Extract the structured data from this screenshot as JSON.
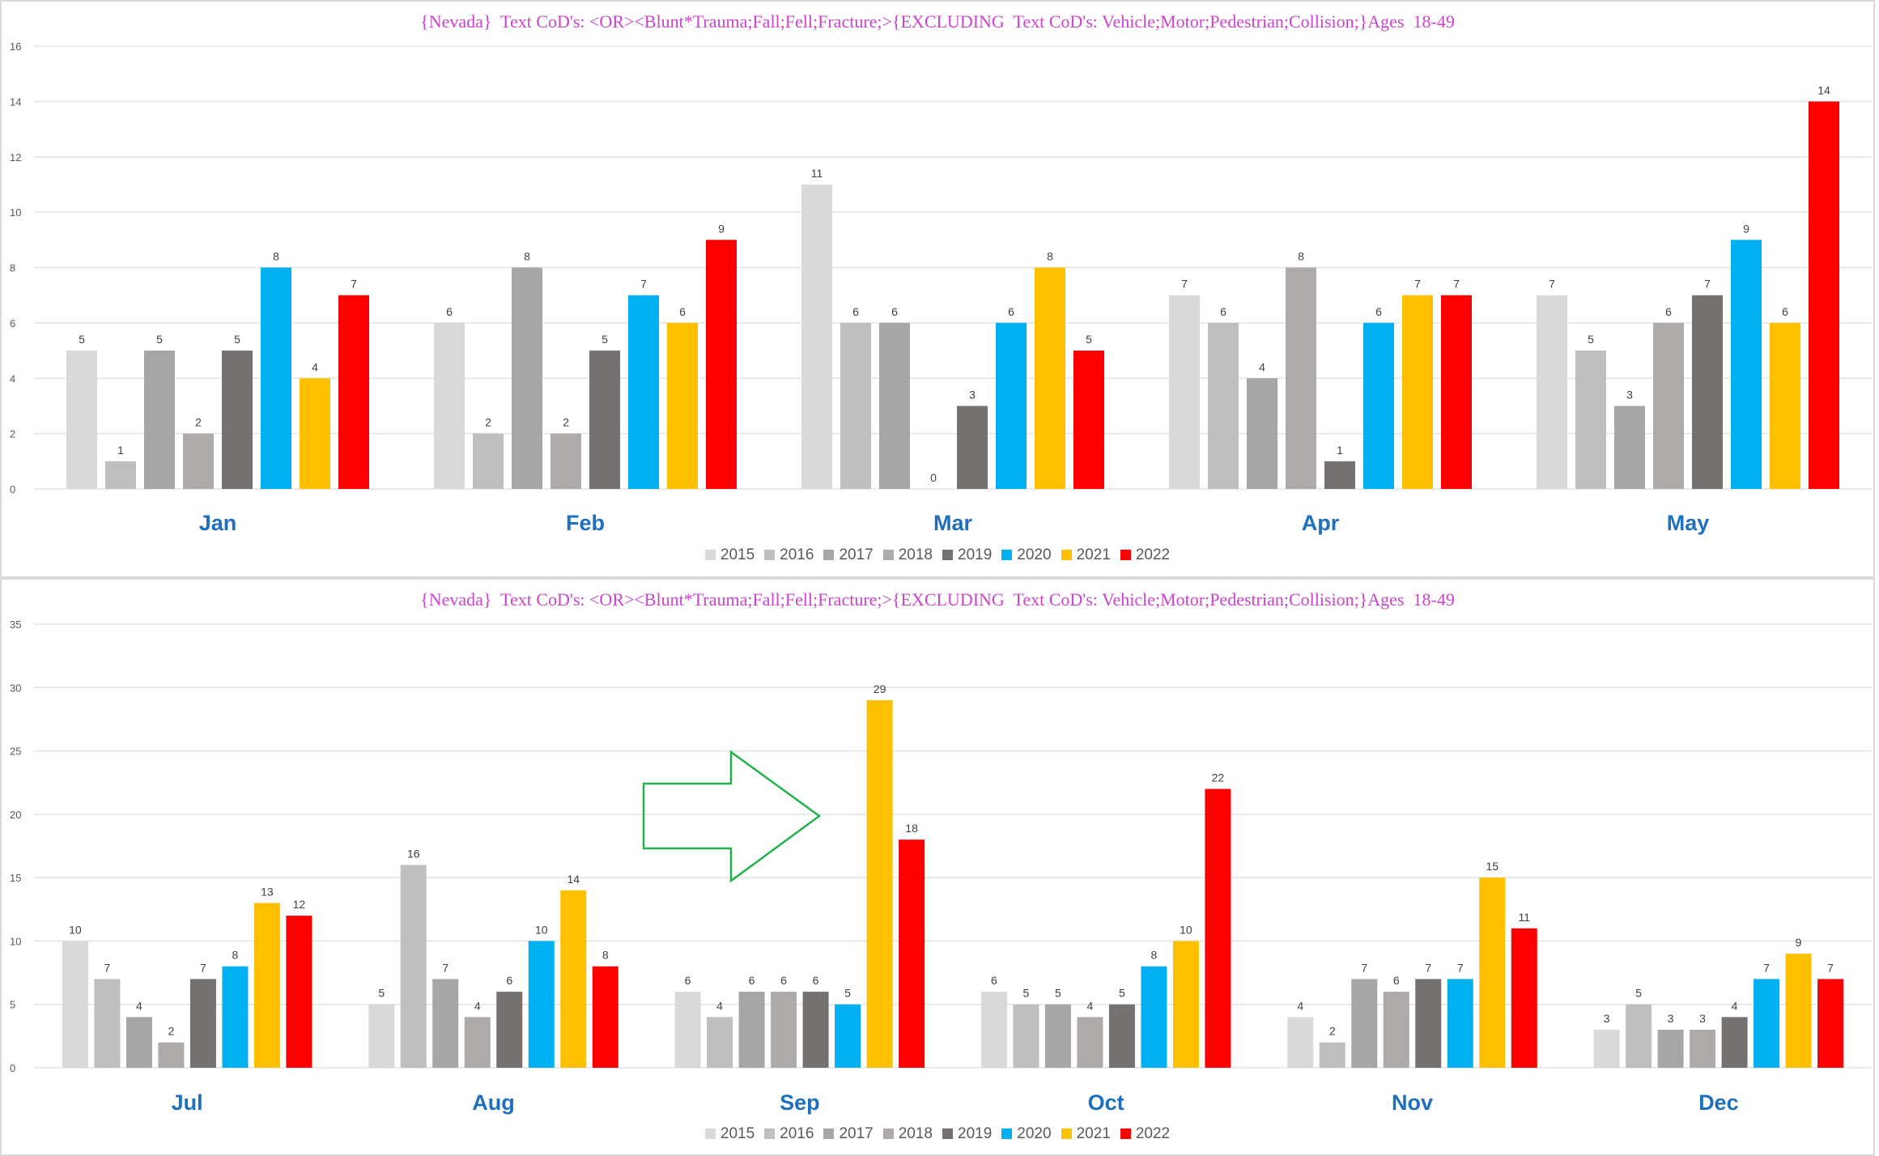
{
  "chart_data": [
    {
      "type": "bar",
      "title": "{Nevada}  Text CoD's: <OR><Blunt*Trauma;Fall;Fell;Fracture;>{EXCLUDING  Text CoD's: Vehicle;Motor;Pedestrian;Collision;}Ages  18-49",
      "categories": [
        "Jan",
        "Feb",
        "Mar",
        "Apr",
        "May"
      ],
      "ylim": [
        0,
        16
      ],
      "yticks": [
        0,
        2,
        4,
        6,
        8,
        10,
        12,
        14,
        16
      ],
      "grid": true,
      "legend_position": "bottom",
      "series": [
        {
          "name": "2015",
          "color": "#d9d9d9",
          "values": [
            5,
            6,
            11,
            7,
            7
          ]
        },
        {
          "name": "2016",
          "color": "#bfbfbf",
          "values": [
            1,
            2,
            6,
            6,
            5
          ]
        },
        {
          "name": "2017",
          "color": "#a6a6a6",
          "values": [
            5,
            8,
            6,
            4,
            3
          ]
        },
        {
          "name": "2018",
          "color": "#aeaaaa",
          "values": [
            2,
            2,
            0,
            8,
            6
          ]
        },
        {
          "name": "2019",
          "color": "#767171",
          "values": [
            5,
            5,
            3,
            1,
            7
          ]
        },
        {
          "name": "2020",
          "color": "#00b0f0",
          "values": [
            8,
            7,
            6,
            6,
            9
          ]
        },
        {
          "name": "2021",
          "color": "#ffc000",
          "values": [
            4,
            6,
            8,
            7,
            6
          ]
        },
        {
          "name": "2022",
          "color": "#ff0000",
          "values": [
            7,
            9,
            5,
            7,
            14
          ]
        }
      ]
    },
    {
      "type": "bar",
      "title": "{Nevada}  Text CoD's: <OR><Blunt*Trauma;Fall;Fell;Fracture;>{EXCLUDING  Text CoD's: Vehicle;Motor;Pedestrian;Collision;}Ages  18-49",
      "categories": [
        "Jul",
        "Aug",
        "Sep",
        "Oct",
        "Nov",
        "Dec"
      ],
      "ylim": [
        0,
        35
      ],
      "yticks": [
        0,
        5,
        10,
        15,
        20,
        25,
        30,
        35
      ],
      "grid": true,
      "legend_position": "bottom",
      "annotation": "arrow pointing right toward Sep 2021",
      "series": [
        {
          "name": "2015",
          "color": "#d9d9d9",
          "values": [
            10,
            5,
            6,
            6,
            4,
            3
          ]
        },
        {
          "name": "2016",
          "color": "#bfbfbf",
          "values": [
            7,
            16,
            4,
            5,
            2,
            5
          ]
        },
        {
          "name": "2017",
          "color": "#a6a6a6",
          "values": [
            4,
            7,
            6,
            5,
            7,
            3
          ]
        },
        {
          "name": "2018",
          "color": "#aeaaaa",
          "values": [
            2,
            4,
            6,
            4,
            6,
            3
          ]
        },
        {
          "name": "2019",
          "color": "#767171",
          "values": [
            7,
            6,
            6,
            5,
            7,
            4
          ]
        },
        {
          "name": "2020",
          "color": "#00b0f0",
          "values": [
            8,
            10,
            5,
            8,
            7,
            7
          ]
        },
        {
          "name": "2021",
          "color": "#ffc000",
          "values": [
            13,
            14,
            29,
            10,
            15,
            9
          ]
        },
        {
          "name": "2022",
          "color": "#ff0000",
          "values": [
            12,
            8,
            18,
            22,
            11,
            7
          ]
        }
      ]
    }
  ],
  "style": {
    "category_label_color": "#1f6fbf",
    "tick_label_color": "#595959",
    "gridline_color": "#e3e3e3",
    "arrow_color": "#22b14c"
  }
}
